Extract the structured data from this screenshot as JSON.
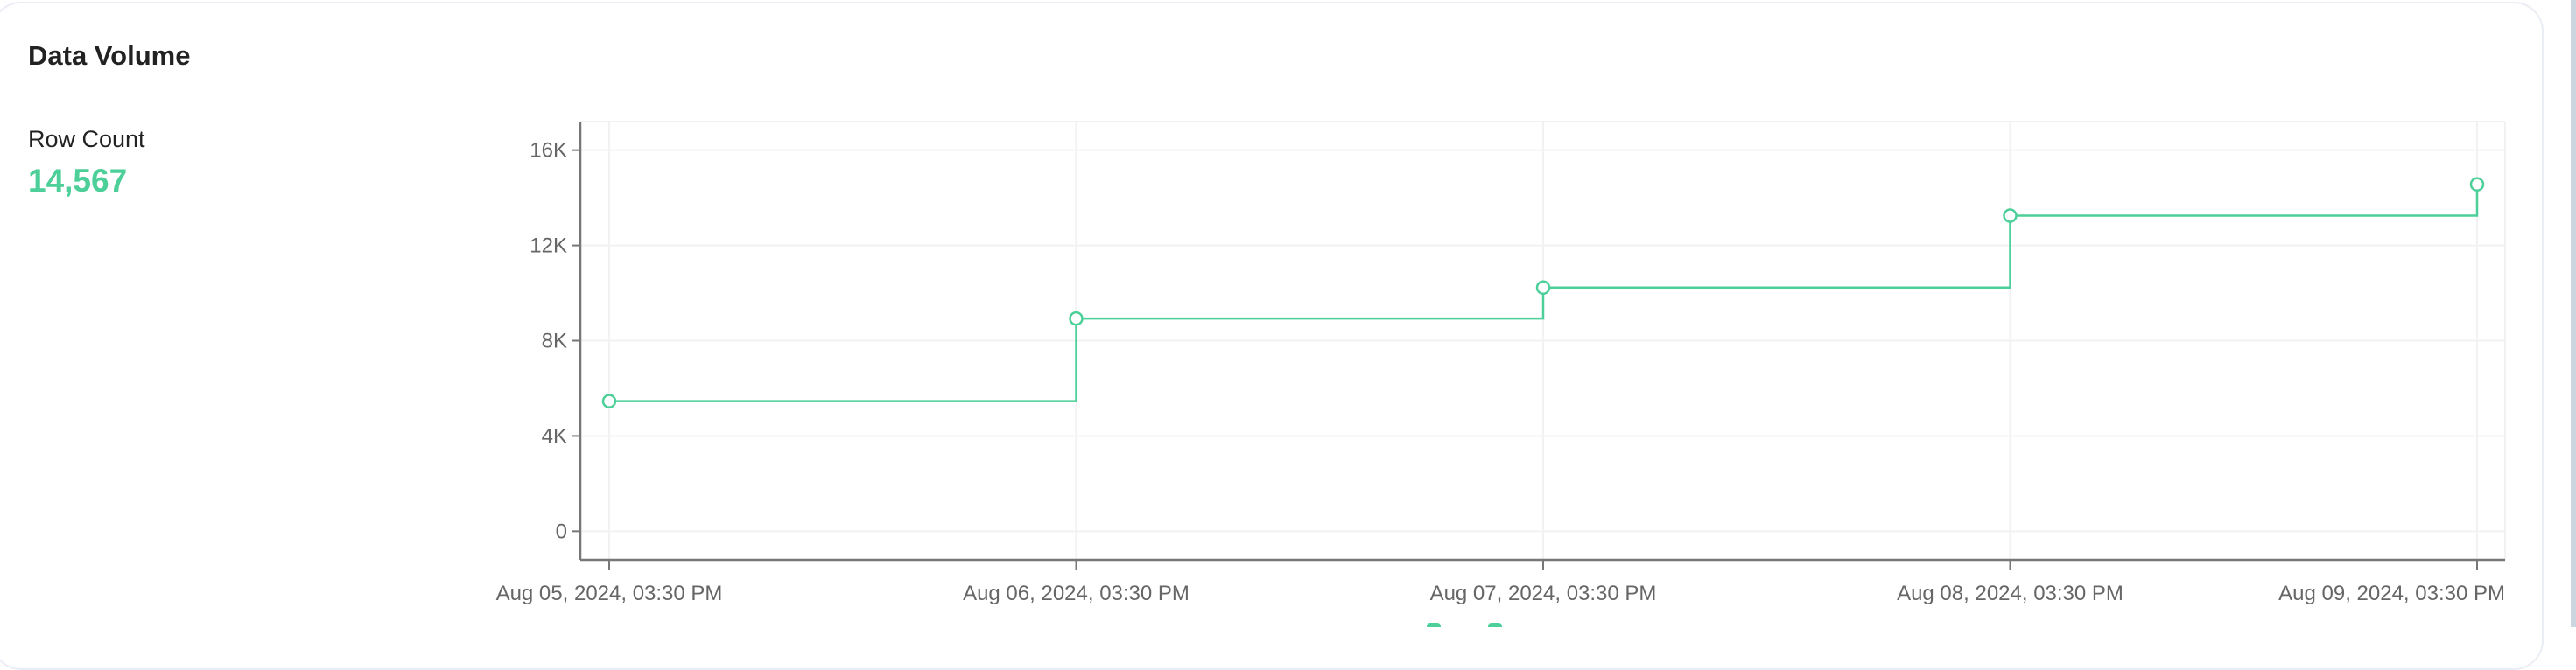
{
  "card": {
    "title": "Data Volume",
    "metric_label": "Row Count",
    "metric_value": "14,567"
  },
  "colors": {
    "series": "#4ccf98",
    "axis": "#777777",
    "grid": "#f2f2f2"
  },
  "chart_data": {
    "type": "line",
    "line_shape": "step-before",
    "x": [
      "Aug 05, 2024, 03:30 PM",
      "Aug 06, 2024, 03:30 PM",
      "Aug 07, 2024, 03:30 PM",
      "Aug 08, 2024, 03:30 PM",
      "Aug 09, 2024, 03:30 PM"
    ],
    "values": [
      5460,
      8930,
      10230,
      13250,
      14567
    ],
    "y_ticks": [
      0,
      4000,
      8000,
      12000,
      16000
    ],
    "y_tick_labels": [
      "0",
      "4K",
      "8K",
      "12K",
      "16K"
    ],
    "ylim": [
      -1200,
      17200
    ],
    "grid": true,
    "markers": "open-circle"
  }
}
